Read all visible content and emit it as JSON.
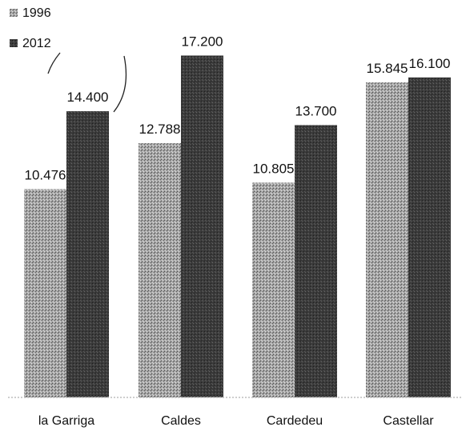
{
  "chart_data": {
    "type": "bar",
    "categories": [
      "la Garriga",
      "Caldes",
      "Cardedeu",
      "Castellar"
    ],
    "series": [
      {
        "name": "1996",
        "values": [
          10476,
          12788,
          10805,
          15845
        ],
        "labels": [
          "10.476",
          "12.788",
          "10.805",
          "15.845"
        ],
        "color": "#9a9a9a"
      },
      {
        "name": "2012",
        "values": [
          14400,
          17200,
          13700,
          16100
        ],
        "labels": [
          "14.400",
          "17.200",
          "13.700",
          "16.100"
        ],
        "color": "#333333"
      }
    ],
    "title": "",
    "xlabel": "",
    "ylabel": "",
    "ylim": [
      0,
      17500
    ],
    "grid": false,
    "legend_position": "top-left"
  }
}
